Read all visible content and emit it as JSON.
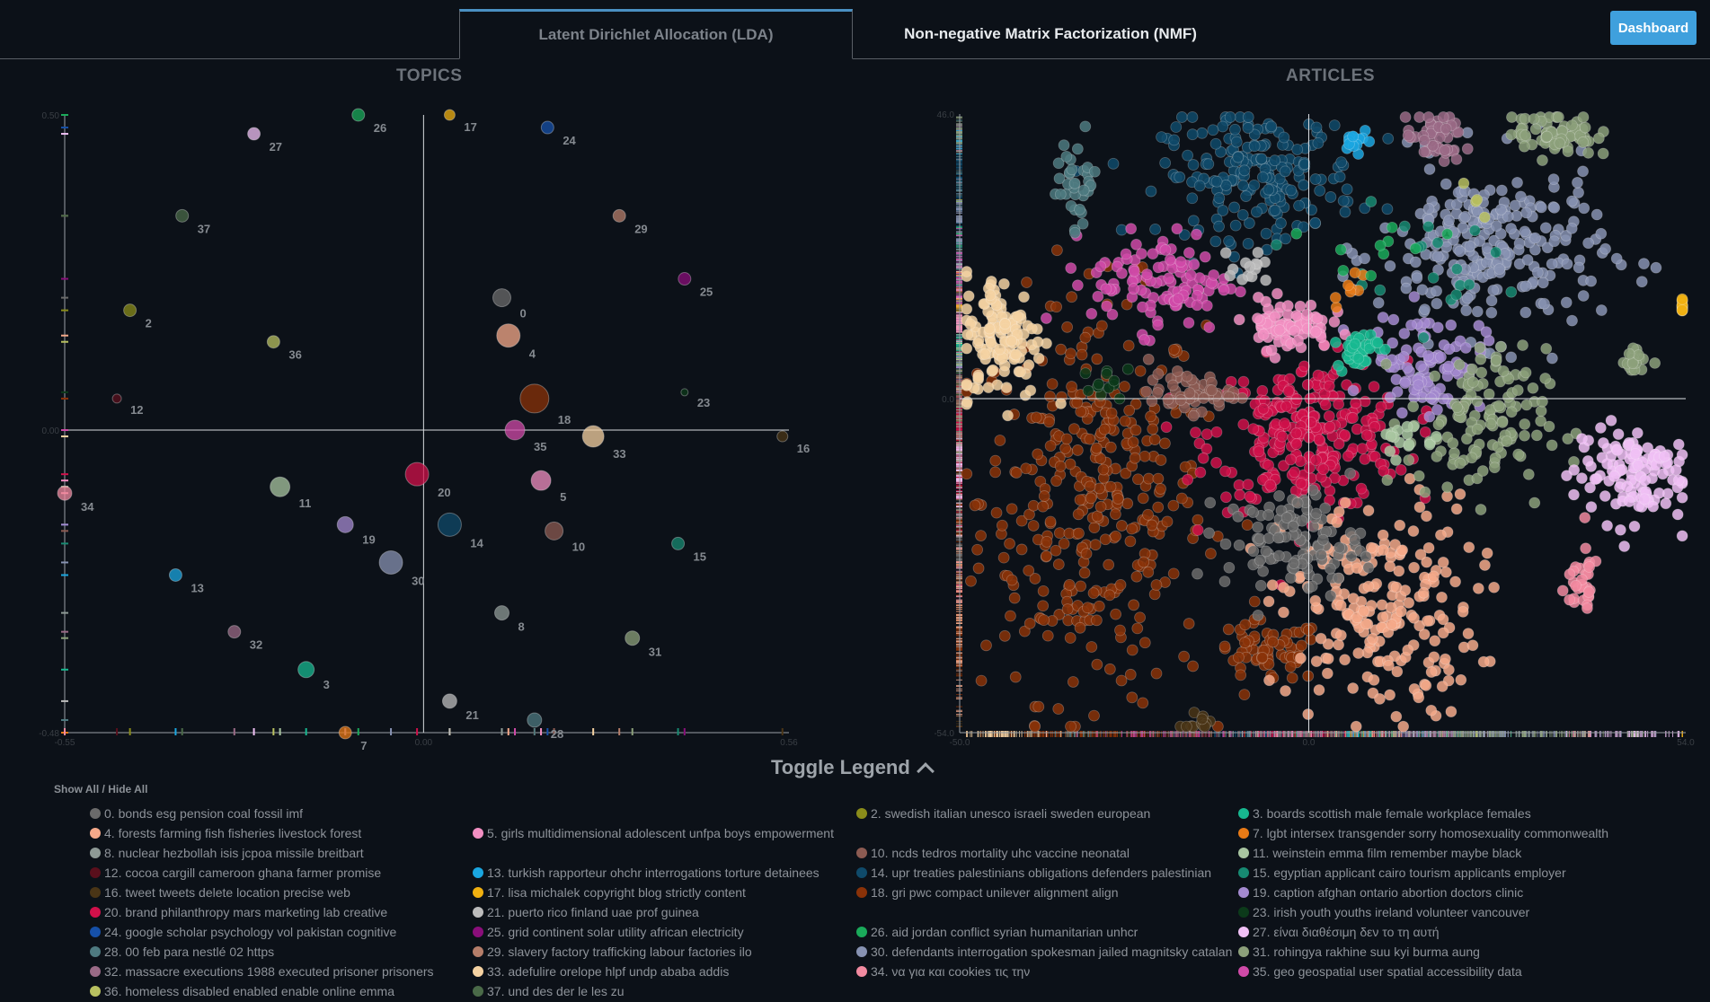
{
  "tabs": [
    {
      "label": "Latent Dirichlet Allocation (LDA)",
      "active": false
    },
    {
      "label": "Non-negative Matrix Factorization (NMF)",
      "active": true
    }
  ],
  "dashboard_label": "Dashboard",
  "panels": {
    "topics_title": "TOPICS",
    "articles_title": "ARTICLES"
  },
  "toggle_legend_label": "Toggle Legend",
  "show_all_label": "Show All / Hide All",
  "topics": [
    {
      "id": 0,
      "label": "0. bonds esg pension coal fossil imf",
      "color": "#6b6b6b"
    },
    {
      "id": 1,
      "label": "",
      "color": "#888888"
    },
    {
      "id": 2,
      "label": "2. swedish italian unesco israeli sweden european",
      "color": "#8a8c1a"
    },
    {
      "id": 3,
      "label": "3. boards scottish male female workplace females",
      "color": "#17b890"
    },
    {
      "id": 4,
      "label": "4. forests farming fish fisheries livestock forest",
      "color": "#f5a98a"
    },
    {
      "id": 5,
      "label": "5. girls multidimensional adolescent unfpa boys empowerment",
      "color": "#f28fc2"
    },
    {
      "id": 6,
      "label": "",
      "color": "#777777"
    },
    {
      "id": 7,
      "label": "7. lgbt intersex transgender sorry homosexuality commonwealth",
      "color": "#e87a16"
    },
    {
      "id": 8,
      "label": "8. nuclear hezbollah isis jcpoa missile breitbart",
      "color": "#8e9a96"
    },
    {
      "id": 9,
      "label": "",
      "color": "#777777"
    },
    {
      "id": 10,
      "label": "10. ncds tedros mortality uhc vaccine neonatal",
      "color": "#8c5b52"
    },
    {
      "id": 11,
      "label": "11. weinstein emma film remember maybe black",
      "color": "#a8c5a0"
    },
    {
      "id": 12,
      "label": "12. cocoa cargill cameroon ghana farmer promise",
      "color": "#5a0f1c"
    },
    {
      "id": 13,
      "label": "13. turkish rapporteur ohchr interrogations torture detainees",
      "color": "#1aa6e0"
    },
    {
      "id": 14,
      "label": "14. upr treaties palestinians obligations defenders palestinian",
      "color": "#0f4a6a"
    },
    {
      "id": 15,
      "label": "15. egyptian applicant cairo tourism applicants employer",
      "color": "#178a72"
    },
    {
      "id": 16,
      "label": "16. tweet tweets delete location precise web",
      "color": "#4a3516"
    },
    {
      "id": 17,
      "label": "17. lisa michalek copyright blog strictly content",
      "color": "#f0b010"
    },
    {
      "id": 18,
      "label": "18. gri pwc compact unilever alignment align",
      "color": "#8a3208"
    },
    {
      "id": 19,
      "label": "19. caption afghan ontario abortion doctors clinic",
      "color": "#a48ad0"
    },
    {
      "id": 20,
      "label": "20. brand philanthropy mars marketing lab creative",
      "color": "#d0104a"
    },
    {
      "id": 21,
      "label": "21. puerto rico finland uae prof guinea",
      "color": "#bcbcbc"
    },
    {
      "id": 22,
      "label": "",
      "color": "#777777"
    },
    {
      "id": 23,
      "label": "23. irish youth youths ireland volunteer vancouver",
      "color": "#0c3a1a"
    },
    {
      "id": 24,
      "label": "24. google scholar psychology vol pakistan cognitive",
      "color": "#1650a8"
    },
    {
      "id": 25,
      "label": "25. grid continent solar utility african electricity",
      "color": "#8a0e7a"
    },
    {
      "id": 26,
      "label": "26. aid jordan conflict syrian humanitarian unhcr",
      "color": "#1aaa5a"
    },
    {
      "id": 27,
      "label": "27. είναι διαθέσιμη δεν το τη αυτή",
      "color": "#f0c0f5"
    },
    {
      "id": 28,
      "label": "28. 00 feb para nestlé 02 https",
      "color": "#4e7a80"
    },
    {
      "id": 29,
      "label": "29. slavery factory trafficking labour factories ilo",
      "color": "#b57e6a"
    },
    {
      "id": 30,
      "label": "30. defendants interrogation spokesman jailed magnitsky catalan",
      "color": "#8792b2"
    },
    {
      "id": 31,
      "label": "31. rohingya rakhine suu kyi burma aung",
      "color": "#8ca07a"
    },
    {
      "id": 32,
      "label": "32. massacre executions 1988 executed prisoner prisoners",
      "color": "#9a6a86"
    },
    {
      "id": 33,
      "label": "33. adefulire orelope hlpf undp ababa addis",
      "color": "#f5d2a2"
    },
    {
      "id": 34,
      "label": "34. να για και cookies τις την",
      "color": "#f28aa0"
    },
    {
      "id": 35,
      "label": "35. geo geospatial user spatial accessibility data",
      "color": "#d04aa8"
    },
    {
      "id": 36,
      "label": "36. homeless disabled enabled enable online emma",
      "color": "#b8c060"
    },
    {
      "id": 37,
      "label": "37. und des der le les zu",
      "color": "#4a6a48"
    }
  ],
  "chart_data": [
    {
      "type": "scatter",
      "title": "TOPICS",
      "xlim": [
        -0.55,
        0.56
      ],
      "ylim": [
        -0.48,
        0.5
      ],
      "x_tick_labels": [
        "-0.55",
        "0.00",
        "0.56"
      ],
      "y_tick_labels": [
        "0.50",
        "0.00",
        "-0.48"
      ],
      "points": [
        {
          "id": 0,
          "x": 0.12,
          "y": 0.21,
          "size": 10
        },
        {
          "id": 2,
          "x": -0.45,
          "y": 0.19,
          "size": 7
        },
        {
          "id": 3,
          "x": -0.18,
          "y": -0.38,
          "size": 9
        },
        {
          "id": 4,
          "x": 0.13,
          "y": 0.15,
          "size": 13
        },
        {
          "id": 5,
          "x": 0.18,
          "y": -0.08,
          "size": 11
        },
        {
          "id": 7,
          "x": -0.12,
          "y": -0.48,
          "size": 7
        },
        {
          "id": 8,
          "x": 0.12,
          "y": -0.29,
          "size": 8
        },
        {
          "id": 10,
          "x": 0.2,
          "y": -0.16,
          "size": 10
        },
        {
          "id": 11,
          "x": -0.22,
          "y": -0.09,
          "size": 11
        },
        {
          "id": 12,
          "x": -0.47,
          "y": 0.05,
          "size": 5
        },
        {
          "id": 13,
          "x": -0.38,
          "y": -0.23,
          "size": 7
        },
        {
          "id": 14,
          "x": 0.04,
          "y": -0.15,
          "size": 13
        },
        {
          "id": 15,
          "x": 0.39,
          "y": -0.18,
          "size": 7
        },
        {
          "id": 16,
          "x": 0.55,
          "y": -0.01,
          "size": 6
        },
        {
          "id": 17,
          "x": 0.04,
          "y": 0.5,
          "size": 6
        },
        {
          "id": 18,
          "x": 0.17,
          "y": 0.05,
          "size": 16
        },
        {
          "id": 19,
          "x": -0.12,
          "y": -0.15,
          "size": 9
        },
        {
          "id": 20,
          "x": -0.01,
          "y": -0.07,
          "size": 13
        },
        {
          "id": 21,
          "x": 0.04,
          "y": -0.43,
          "size": 8
        },
        {
          "id": 23,
          "x": 0.4,
          "y": 0.06,
          "size": 4
        },
        {
          "id": 24,
          "x": 0.19,
          "y": 0.48,
          "size": 7
        },
        {
          "id": 25,
          "x": 0.4,
          "y": 0.24,
          "size": 7
        },
        {
          "id": 26,
          "x": -0.1,
          "y": 0.5,
          "size": 7
        },
        {
          "id": 27,
          "x": -0.26,
          "y": 0.47,
          "size": 7
        },
        {
          "id": 28,
          "x": 0.17,
          "y": -0.46,
          "size": 8
        },
        {
          "id": 29,
          "x": 0.3,
          "y": 0.34,
          "size": 7
        },
        {
          "id": 30,
          "x": -0.05,
          "y": -0.21,
          "size": 13
        },
        {
          "id": 31,
          "x": 0.32,
          "y": -0.33,
          "size": 8
        },
        {
          "id": 32,
          "x": -0.29,
          "y": -0.32,
          "size": 7
        },
        {
          "id": 33,
          "x": 0.26,
          "y": -0.01,
          "size": 12
        },
        {
          "id": 34,
          "x": -0.55,
          "y": -0.1,
          "size": 8
        },
        {
          "id": 35,
          "x": 0.14,
          "y": 0.0,
          "size": 11
        },
        {
          "id": 36,
          "x": -0.23,
          "y": 0.14,
          "size": 7
        },
        {
          "id": 37,
          "x": -0.37,
          "y": 0.34,
          "size": 7
        }
      ]
    },
    {
      "type": "scatter",
      "title": "ARTICLES",
      "xlim": [
        -50.0,
        54.0
      ],
      "ylim": [
        -54.0,
        46.0
      ],
      "x_tick_labels": [
        "-50.0",
        "0.0",
        "54.0"
      ],
      "y_tick_labels": [
        "46.0",
        "0.0",
        "-54.0"
      ],
      "clusters": [
        {
          "id": 18,
          "cx": -31,
          "cy": -16,
          "sx": 8,
          "sy": 16,
          "n": 360
        },
        {
          "id": 18,
          "cx": -6,
          "cy": -41,
          "sx": 4,
          "sy": 2.5,
          "n": 70
        },
        {
          "id": 20,
          "cx": 0,
          "cy": -6,
          "sx": 7,
          "sy": 6,
          "n": 280
        },
        {
          "id": 4,
          "cx": 10,
          "cy": -34,
          "sx": 7,
          "sy": 9,
          "n": 220
        },
        {
          "id": 14,
          "cx": -7,
          "cy": 36,
          "sx": 7,
          "sy": 5,
          "n": 200
        },
        {
          "id": 30,
          "cx": 26,
          "cy": 24,
          "sx": 8,
          "sy": 7,
          "n": 250
        },
        {
          "id": 19,
          "cx": 17,
          "cy": 6,
          "sx": 4,
          "sy": 4,
          "n": 90
        },
        {
          "id": 31,
          "cx": 24,
          "cy": -4,
          "sx": 5,
          "sy": 6,
          "n": 130
        },
        {
          "id": 35,
          "cx": -21,
          "cy": 19,
          "sx": 5,
          "sy": 4,
          "n": 110
        },
        {
          "id": 33,
          "cx": -44,
          "cy": 10,
          "sx": 3,
          "sy": 5,
          "n": 130
        },
        {
          "id": 5,
          "cx": -3,
          "cy": 12,
          "sx": 3,
          "sy": 2,
          "n": 80
        },
        {
          "id": 3,
          "cx": 7,
          "cy": 8,
          "sx": 1.5,
          "sy": 1.5,
          "n": 45
        },
        {
          "id": 0,
          "cx": -2,
          "cy": -23,
          "sx": 5,
          "sy": 4,
          "n": 110
        },
        {
          "id": 10,
          "cx": -17,
          "cy": 1,
          "sx": 3,
          "sy": 1.5,
          "n": 60
        },
        {
          "id": 27,
          "cx": 46,
          "cy": -12,
          "sx": 4,
          "sy": 4,
          "n": 120
        },
        {
          "id": 34,
          "cx": 39,
          "cy": -30,
          "sx": 1.5,
          "sy": 3,
          "n": 30
        },
        {
          "id": 32,
          "cx": 18,
          "cy": 42,
          "sx": 2,
          "sy": 2,
          "n": 50
        },
        {
          "id": 31,
          "cx": 35,
          "cy": 43,
          "sx": 3,
          "sy": 2,
          "n": 70
        },
        {
          "id": 28,
          "cx": -33,
          "cy": 35,
          "sx": 1.5,
          "sy": 4,
          "n": 35
        },
        {
          "id": 13,
          "cx": 7,
          "cy": 42,
          "sx": 1,
          "sy": 0.8,
          "n": 14
        },
        {
          "id": 17,
          "cx": 55,
          "cy": 15,
          "sx": 0.6,
          "sy": 0.6,
          "n": 14
        },
        {
          "id": 31,
          "cx": 47,
          "cy": 6,
          "sx": 1,
          "sy": 1,
          "n": 18
        },
        {
          "id": 16,
          "cx": -16,
          "cy": -52,
          "sx": 1.5,
          "sy": 1,
          "n": 14
        },
        {
          "id": 23,
          "cx": -28,
          "cy": 2,
          "sx": 2,
          "sy": 1.5,
          "n": 12
        },
        {
          "id": 21,
          "cx": -9,
          "cy": 21,
          "sx": 2,
          "sy": 2,
          "n": 14
        },
        {
          "id": 11,
          "cx": 14,
          "cy": -6,
          "sx": 2,
          "sy": 2,
          "n": 16
        },
        {
          "id": 15,
          "cx": 12,
          "cy": 22,
          "sx": 7,
          "sy": 4,
          "n": 20
        },
        {
          "id": 7,
          "cx": 6,
          "cy": 19,
          "sx": 1.5,
          "sy": 2,
          "n": 8
        },
        {
          "id": 26,
          "cx": 10,
          "cy": 24,
          "sx": 4,
          "sy": 3,
          "n": 10
        },
        {
          "id": 36,
          "cx": 22,
          "cy": 33,
          "sx": 2,
          "sy": 2,
          "n": 4
        }
      ]
    }
  ]
}
